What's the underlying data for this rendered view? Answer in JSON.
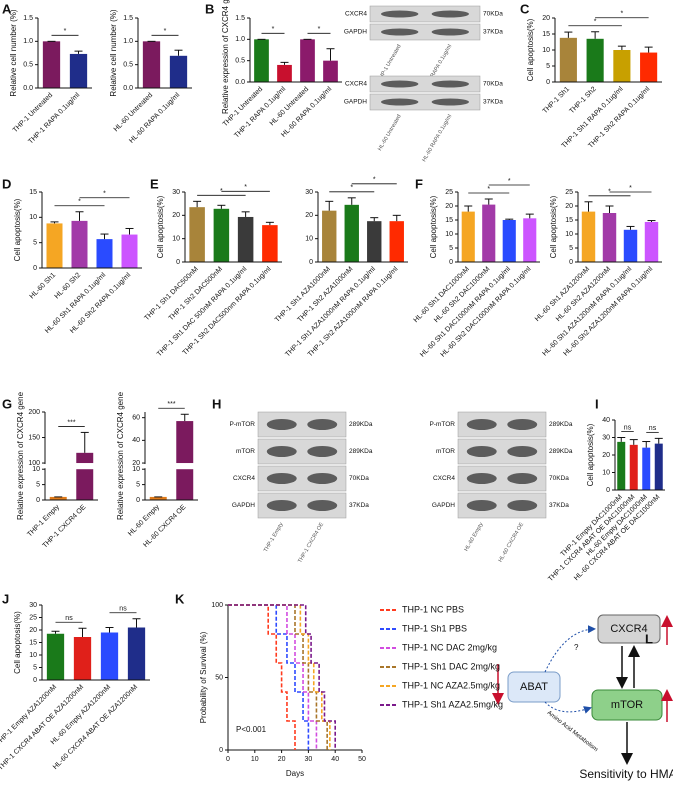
{
  "panel_labels": [
    "A",
    "B",
    "C",
    "D",
    "E",
    "F",
    "G",
    "H",
    "I",
    "J",
    "K",
    "L"
  ],
  "chart_data": [
    {
      "type": "bar",
      "ylabel": "Relative cell number (%)",
      "categories": [
        "THP-1 Untreated",
        "THP-1 RAPA 0.1ug/ml"
      ],
      "values": [
        1.0,
        0.73
      ],
      "errors": [
        0,
        0.06
      ],
      "colors": [
        "#7b1a5e",
        "#1f2d8a"
      ],
      "ylim": [
        0,
        1.5
      ],
      "yticks": [
        {
          "value": 0,
          "label": "0.0"
        },
        {
          "value": 0.5,
          "label": "0.5"
        },
        {
          "value": 1,
          "label": "1.0"
        },
        {
          "value": 1.5,
          "label": "1.5"
        }
      ],
      "brackets": [
        {
          "from": 0,
          "to": 1,
          "label": "*"
        }
      ]
    },
    {
      "type": "bar",
      "ylabel": "Relative cell number (%)",
      "categories": [
        "HL-60 Untreated",
        "HL-60 RAPA 0.1ug/ml"
      ],
      "values": [
        1.0,
        0.69
      ],
      "errors": [
        0,
        0.12
      ],
      "colors": [
        "#7b1a5e",
        "#1f2d8a"
      ],
      "ylim": [
        0,
        1.5
      ],
      "yticks": [
        {
          "value": 0,
          "label": "0.0"
        },
        {
          "value": 0.5,
          "label": "0.5"
        },
        {
          "value": 1,
          "label": "1.0"
        },
        {
          "value": 1.5,
          "label": "1.5"
        }
      ],
      "brackets": [
        {
          "from": 0,
          "to": 1,
          "label": "*"
        }
      ]
    },
    {
      "type": "bar",
      "ylabel": "Relative expression of CXCR4 gene",
      "categories": [
        "THP-1 Untreated",
        "THP-1 RAPA 0.1ug/ml",
        "HL-60 Untreated",
        "HL-60 RAPA 0.1ug/ml"
      ],
      "values": [
        1.0,
        0.4,
        1.0,
        0.5
      ],
      "errors": [
        0,
        0.06,
        0,
        0.28
      ],
      "colors": [
        "#1a7a1a",
        "#c8102e",
        "#8b1a6b",
        "#8b1a6b"
      ],
      "ylim": [
        0,
        1.5
      ],
      "yticks": [
        {
          "value": 0,
          "label": "0.0"
        },
        {
          "value": 0.5,
          "label": "0.5"
        },
        {
          "value": 1,
          "label": "1.0"
        },
        {
          "value": 1.5,
          "label": "1.5"
        }
      ],
      "brackets": [
        {
          "from": 0,
          "to": 1,
          "label": "*"
        },
        {
          "from": 2,
          "to": 3,
          "label": "*"
        }
      ]
    },
    {
      "type": "bar",
      "ylabel": "Cell apoptosis(%)",
      "categories": [
        "THP-1 Sh1",
        "THP-1 Sh2",
        "THP-1 Sh1 RAPA 0.1ug/ml",
        "THP-1 Sh2 RAPA 0.1ug/ml"
      ],
      "values": [
        13.8,
        13.5,
        10,
        9.2
      ],
      "errors": [
        1.8,
        2.2,
        1.2,
        1.7
      ],
      "colors": [
        "#a8843a",
        "#1a7a1a",
        "#c8a000",
        "#ff2a00"
      ],
      "ylim": [
        0,
        20
      ],
      "yticks": [
        0,
        5,
        10,
        15,
        20
      ],
      "brackets": [
        {
          "from": 0,
          "to": 2,
          "label": "*"
        },
        {
          "from": 1,
          "to": 3,
          "label": "*"
        }
      ]
    },
    {
      "type": "bar",
      "ylabel": "Cell apoptosis(%)",
      "categories": [
        "HL-60 Sh1",
        "HL-60 Sh2",
        "HL-60 Sh1 RAPA 0.1ug/ml",
        "HL-60 Sh2 RAPA 0.1ug/ml"
      ],
      "values": [
        8.8,
        9.3,
        5.7,
        6.6
      ],
      "errors": [
        0.3,
        1.8,
        1.0,
        1.2
      ],
      "colors": [
        "#f5a623",
        "#a23aa8",
        "#2a4bff",
        "#cc55ff"
      ],
      "ylim": [
        0,
        15
      ],
      "yticks": [
        0,
        5,
        10,
        15
      ],
      "brackets": [
        {
          "from": 0,
          "to": 2,
          "label": "*"
        },
        {
          "from": 1,
          "to": 3,
          "label": "*"
        }
      ]
    },
    {
      "type": "bar",
      "ylabel": "Cell apoptosis(%)",
      "categories": [
        "THP-1 Sh1 DAC500nM",
        "THP-1 Sh2 DAC500nM",
        "THP-1 Sh1 DAC 500nM RAPA 0.1ug/ml",
        "THP-1 Sh2 DAC500nm RAPA 0.1ug/ml"
      ],
      "values": [
        23.5,
        22.8,
        19.3,
        15.8
      ],
      "errors": [
        2.5,
        1.5,
        2.2,
        1.2
      ],
      "colors": [
        "#a8843a",
        "#1a7a1a",
        "#3a3a3a",
        "#ff2a00"
      ],
      "ylim": [
        0,
        30
      ],
      "yticks": [
        0,
        10,
        20,
        30
      ],
      "brackets": [
        {
          "from": 0,
          "to": 2,
          "label": "*"
        },
        {
          "from": 1,
          "to": 3,
          "label": "*"
        }
      ]
    },
    {
      "type": "bar",
      "ylabel": "",
      "categories": [
        "THP-1 Sh1 AZA1000nM",
        "THP-1 Sh2 AZA1000nM",
        "THP-1 Sh1 AZA1000nM RAPA 0.1ug/ml",
        "THP-1 Sh2 AZA1000nM RAPA 0.1ug/ml"
      ],
      "values": [
        22,
        24.5,
        17.5,
        17.5
      ],
      "errors": [
        4,
        3,
        1.5,
        2.5
      ],
      "colors": [
        "#a8843a",
        "#1a7a1a",
        "#3a3a3a",
        "#ff2a00"
      ],
      "ylim": [
        0,
        30
      ],
      "yticks": [
        0,
        10,
        20,
        30
      ],
      "brackets": [
        {
          "from": 0,
          "to": 2,
          "label": "*"
        },
        {
          "from": 1,
          "to": 3,
          "label": "*"
        }
      ]
    },
    {
      "type": "bar",
      "ylabel": "Cell apoptosis(%)",
      "categories": [
        "HL-60 Sh1 DAC1000nM",
        "HL-60 Sh2 DAC1000nM",
        "HL-60 Sh1 DAC1000nM RAPA 0.1ug/ml",
        "HL-60 Sh2 DAC1000nM RAPA 0.1ug/ml"
      ],
      "values": [
        18,
        20.5,
        15,
        15.6
      ],
      "errors": [
        2,
        2,
        0.3,
        1.5
      ],
      "colors": [
        "#f5a623",
        "#a23aa8",
        "#2a4bff",
        "#cc55ff"
      ],
      "ylim": [
        0,
        25
      ],
      "yticks": [
        0,
        5,
        10,
        15,
        20,
        25
      ],
      "brackets": [
        {
          "from": 0,
          "to": 2,
          "label": "*"
        },
        {
          "from": 1,
          "to": 3,
          "label": "*"
        }
      ]
    },
    {
      "type": "bar",
      "ylabel": "Cell apoptosis(%)",
      "categories": [
        "HL-60 Sh1 AZA1200nM",
        "HL-60 Sh2 AZA1200nM",
        "HL-60 Sh1 AZA1200nM RAPA 0.1ug/ml",
        "HL-60 Sh2 AZA1200nM RAPA 0.1ug/ml"
      ],
      "values": [
        18,
        17.5,
        11.5,
        14.3
      ],
      "errors": [
        3.5,
        2.5,
        1.2,
        0.5
      ],
      "colors": [
        "#f5a623",
        "#a23aa8",
        "#2a4bff",
        "#cc55ff"
      ],
      "ylim": [
        0,
        25
      ],
      "yticks": [
        0,
        5,
        10,
        15,
        20,
        25
      ],
      "brackets": [
        {
          "from": 0,
          "to": 2,
          "label": "*"
        },
        {
          "from": 1,
          "to": 3,
          "label": "*"
        }
      ]
    },
    {
      "type": "bar",
      "ylabel": "Relative expression of CXCR4 gene",
      "categories": [
        "THP-1 Empty",
        "THP-1 CXCR4 OE"
      ],
      "values": [
        1,
        120
      ],
      "errors": [
        0,
        40
      ],
      "colors": [
        "#e07b1a",
        "#7b1a5e"
      ],
      "ylim": [
        0,
        200
      ],
      "axis_break": [
        10,
        100
      ],
      "yticks": [
        0,
        5,
        10,
        100,
        150,
        200
      ],
      "brackets": [
        {
          "from": 0,
          "to": 1,
          "label": "***"
        }
      ]
    },
    {
      "type": "bar",
      "ylabel": "Relative expression of CXCR4 gene",
      "categories": [
        "HL-60 Empty",
        "HL-60 CXCR4 OE"
      ],
      "values": [
        1,
        57
      ],
      "errors": [
        0,
        6
      ],
      "colors": [
        "#e07b1a",
        "#7b1a5e"
      ],
      "ylim": [
        0,
        65
      ],
      "axis_break": [
        10,
        20
      ],
      "yticks": [
        0,
        5,
        10,
        20,
        40,
        60
      ],
      "brackets": [
        {
          "from": 0,
          "to": 1,
          "label": "***"
        }
      ]
    },
    {
      "type": "bar",
      "ylabel": "Cell apoptosis(%)",
      "categories": [
        "THP-1 Empty DAC1000nM",
        "THP-1 CXCR4 ABAT OE DAC1000nM",
        "HL-60 Empty DAC1000nM",
        "HL-60 CXCR4 ABAT OE DAC1000nM"
      ],
      "values": [
        27.5,
        25.8,
        24.2,
        26.5
      ],
      "errors": [
        2.5,
        3,
        3.5,
        3
      ],
      "colors": [
        "#1a7a1a",
        "#e0201a",
        "#2a4bff",
        "#1f2d8a"
      ],
      "ylim": [
        0,
        40
      ],
      "yticks": [
        0,
        10,
        20,
        30,
        40
      ],
      "brackets": [
        {
          "from": 0,
          "to": 1,
          "label": "ns"
        },
        {
          "from": 2,
          "to": 3,
          "label": "ns"
        }
      ]
    },
    {
      "type": "bar",
      "ylabel": "Cell apoptosis(%)",
      "categories": [
        "THP-1 Empty AZA1200nM",
        "THP-1 CXCR4 ABAT OE AZA1200nM",
        "HL-60 Empty AZA1200nM",
        "HL-60 CXCR4 ABAT OE AZA1200nM"
      ],
      "values": [
        18.5,
        17.2,
        19,
        21
      ],
      "errors": [
        1,
        3.5,
        2,
        3.5
      ],
      "colors": [
        "#1a7a1a",
        "#e0201a",
        "#2a4bff",
        "#1f2d8a"
      ],
      "ylim": [
        0,
        30
      ],
      "yticks": [
        0,
        5,
        10,
        15,
        20,
        25,
        30
      ],
      "brackets": [
        {
          "from": 0,
          "to": 1,
          "label": "ns"
        },
        {
          "from": 2,
          "to": 3,
          "label": "ns"
        }
      ]
    },
    {
      "type": "survival",
      "ylabel": "Probability of Survival (%)",
      "xlabel": "Days",
      "annotation": "P<0.001",
      "xlim": [
        0,
        50
      ],
      "xticks": [
        0,
        10,
        20,
        30,
        40,
        50
      ],
      "ylim": [
        0,
        100
      ],
      "yticks": [
        0,
        50,
        100
      ],
      "series": [
        {
          "name": "THP-1 NC PBS",
          "color": "#ff3b1f",
          "x": [
            0,
            15,
            18,
            20,
            22,
            25
          ],
          "values": [
            100,
            80,
            60,
            40,
            20,
            0
          ]
        },
        {
          "name": "THP-1 Sh1 PBS",
          "color": "#2f4bff",
          "x": [
            0,
            18,
            22,
            25,
            28,
            30
          ],
          "values": [
            100,
            80,
            60,
            40,
            20,
            0
          ]
        },
        {
          "name": "THP-1 NC DAC 2mg/kg",
          "color": "#d24ce0",
          "x": [
            0,
            22,
            25,
            28,
            30,
            33
          ],
          "values": [
            100,
            80,
            60,
            40,
            20,
            0
          ]
        },
        {
          "name": "THP-1 Sh1 DAC 2mg/kg",
          "color": "#a8762a",
          "x": [
            0,
            25,
            28,
            30,
            33,
            37
          ],
          "values": [
            100,
            80,
            60,
            40,
            20,
            0
          ]
        },
        {
          "name": "THP-1 NC AZA2.5mg/kg",
          "color": "#f5a623",
          "x": [
            0,
            27,
            30,
            32,
            35,
            38
          ],
          "values": [
            100,
            80,
            60,
            40,
            20,
            0
          ]
        },
        {
          "name": "THP-1 Sh1 AZA2.5mg/kg",
          "color": "#7b1a8b",
          "x": [
            0,
            29,
            31,
            34,
            36,
            40
          ],
          "values": [
            100,
            80,
            60,
            40,
            20,
            0
          ]
        }
      ]
    }
  ],
  "blots": [
    {
      "rows": [
        {
          "label": "CXCR4",
          "size": "70KDa"
        },
        {
          "label": "GAPDH",
          "size": "37KDa"
        }
      ],
      "lanes": [
        "THP-1 Untreated",
        "THP-1 RAPA 0.1ug/ml"
      ]
    },
    {
      "rows": [
        {
          "label": "CXCR4",
          "size": "70KDa"
        },
        {
          "label": "GAPDH",
          "size": "37KDa"
        }
      ],
      "lanes": [
        "HL-60 Untreated",
        "HL-60 RAPA 0.1ug/ml"
      ]
    },
    {
      "rows": [
        {
          "label": "P-mTOR",
          "size": "289KDa"
        },
        {
          "label": "mTOR",
          "size": "289KDa"
        },
        {
          "label": "CXCR4",
          "size": "70KDa"
        },
        {
          "label": "GAPDH",
          "size": "37KDa"
        }
      ],
      "lanes": [
        "THP-1 Empty",
        "THP-1 CXCR4 OE"
      ]
    },
    {
      "rows": [
        {
          "label": "P-mTOR",
          "size": "289KDa"
        },
        {
          "label": "mTOR",
          "size": "289KDa"
        },
        {
          "label": "CXCR4",
          "size": "70KDa"
        },
        {
          "label": "GAPDH",
          "size": "37KDa"
        }
      ],
      "lanes": [
        "HL-60 Empty",
        "HL-60 CXCR4 OE"
      ]
    }
  ],
  "diagram": {
    "nodes": [
      "ABAT",
      "CXCR4",
      "mTOR"
    ],
    "question": "?",
    "edge_label": "Amino Acid Metabolism",
    "outcome": "Sensitivity to HMA"
  }
}
